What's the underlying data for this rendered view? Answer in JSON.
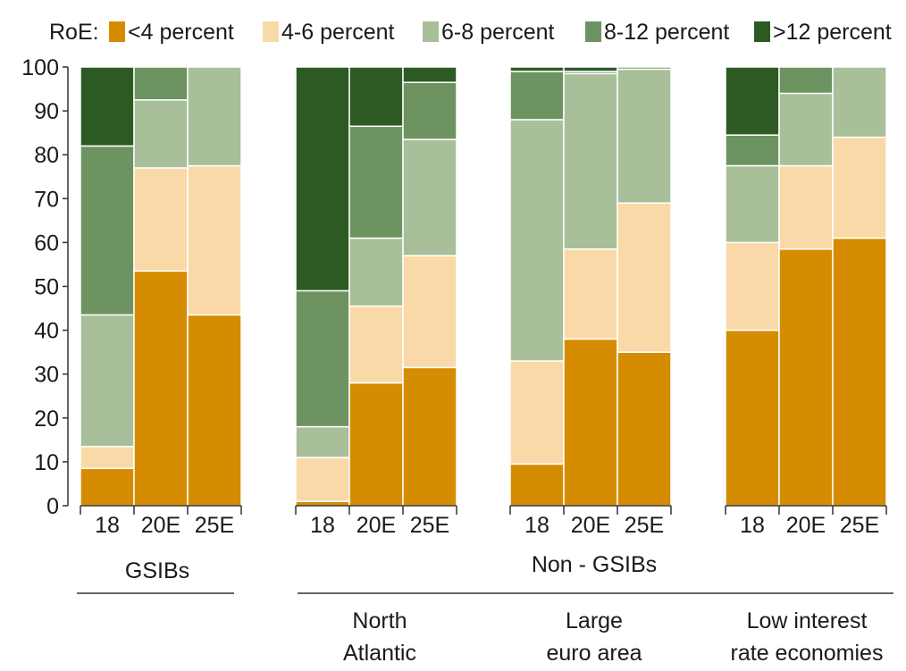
{
  "chart_data": {
    "type": "bar",
    "stacked": true,
    "legend_title": "RoE:",
    "legend_position": "top",
    "ylim": [
      0,
      100
    ],
    "yticks": [
      0,
      10,
      20,
      30,
      40,
      50,
      60,
      70,
      80,
      90,
      100
    ],
    "colors": {
      "<4 percent": "#d68c00",
      "4-6 percent": "#fad9a8",
      "6-8 percent": "#a8bf9a",
      "8-12 percent": "#6d9460",
      ">12 percent": "#2d5a23"
    },
    "groups": [
      {
        "label": "GSIBs",
        "sublabel": "",
        "categories": [
          "18",
          "20E",
          "25E"
        ]
      },
      {
        "label": "Non - GSIBs",
        "sublabel": "North Atlantic",
        "categories": [
          "18",
          "20E",
          "25E"
        ]
      },
      {
        "label": "",
        "sublabel": "Large euro area",
        "categories": [
          "18",
          "20E",
          "25E"
        ]
      },
      {
        "label": "",
        "sublabel": "Low interest rate economies",
        "categories": [
          "18",
          "20E",
          "25E"
        ]
      }
    ],
    "series": [
      {
        "name": "<4 percent",
        "values": [
          8.5,
          53.5,
          43.5,
          1,
          28,
          31.5,
          9.5,
          38,
          35,
          40,
          58.5,
          61
        ]
      },
      {
        "name": "4-6 percent",
        "values": [
          5,
          23.5,
          34,
          10,
          17.5,
          25.5,
          23.5,
          20.5,
          34,
          20,
          19,
          23
        ]
      },
      {
        "name": "6-8 percent",
        "values": [
          30,
          15.5,
          22.5,
          7,
          15.5,
          26.5,
          55,
          40,
          30.5,
          17.5,
          16.5,
          16
        ]
      },
      {
        "name": "8-12 percent",
        "values": [
          38.5,
          7.5,
          0,
          31,
          25.5,
          13,
          11,
          0.5,
          0.5,
          7,
          6,
          0
        ]
      },
      {
        "name": ">12 percent",
        "values": [
          18,
          0,
          0,
          51,
          13.5,
          3.5,
          1,
          1,
          0,
          15.5,
          0,
          0
        ]
      }
    ]
  }
}
